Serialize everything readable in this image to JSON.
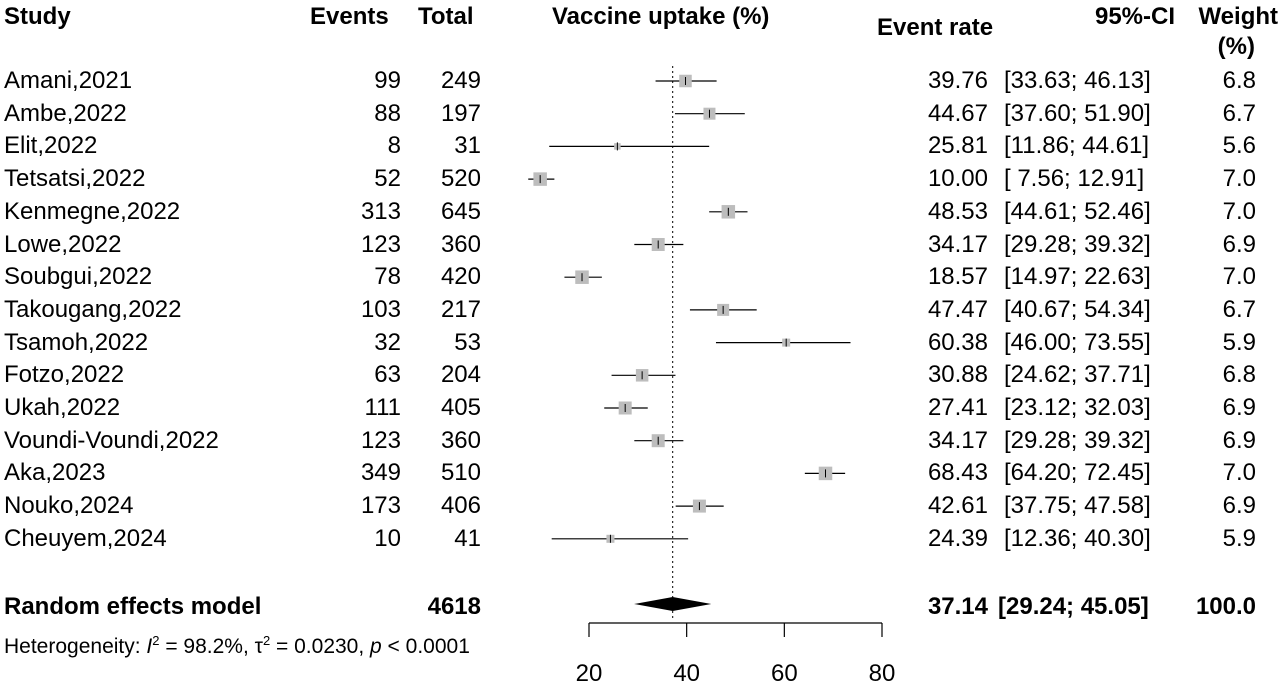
{
  "headers": {
    "study": "Study",
    "events": "Events",
    "total": "Total",
    "plot": "Vaccine uptake (%)",
    "rate": "Event rate",
    "ci": "95%-CI",
    "weight_line1": "Weight",
    "weight_line2": "(%)"
  },
  "summary": {
    "label": "Random effects model",
    "total": "4618",
    "rate": "37.14",
    "ci": "[29.24; 45.05]",
    "weight": "100.0"
  },
  "heterogeneity": {
    "prefix": "Heterogeneity: ",
    "i2_symbol": "I",
    "i2_sup": "2",
    "i2_value": " = 98.2%, ",
    "tau_symbol": "τ",
    "tau_sup": "2",
    "tau_value": " = 0.0230, ",
    "p_symbol": "p",
    "p_value": " < 0.0001"
  },
  "chart_data": {
    "type": "scatter",
    "subtype": "forest",
    "title": "Vaccine uptake (%)",
    "xlim": [
      20,
      80
    ],
    "x_ticks": [
      "20",
      "40",
      "60",
      "80"
    ],
    "reference_line": 37.14,
    "studies": [
      {
        "study": "Amani,2021",
        "events": "99",
        "total": "249",
        "rate": 39.76,
        "lower": 33.63,
        "upper": 46.13,
        "rate_text": "39.76",
        "ci_text": "[33.63; 46.13]",
        "weight": "6.8"
      },
      {
        "study": "Ambe,2022",
        "events": "88",
        "total": "197",
        "rate": 44.67,
        "lower": 37.6,
        "upper": 51.9,
        "rate_text": "44.67",
        "ci_text": "[37.60; 51.90]",
        "weight": "6.7"
      },
      {
        "study": "Elit,2022",
        "events": "8",
        "total": "31",
        "rate": 25.81,
        "lower": 11.86,
        "upper": 44.61,
        "rate_text": "25.81",
        "ci_text": "[11.86; 44.61]",
        "weight": "5.6"
      },
      {
        "study": "Tetsatsi,2022",
        "events": "52",
        "total": "520",
        "rate": 10.0,
        "lower": 7.56,
        "upper": 12.91,
        "rate_text": "10.00",
        "ci_text": "[ 7.56; 12.91]",
        "weight": "7.0"
      },
      {
        "study": "Kenmegne,2022",
        "events": "313",
        "total": "645",
        "rate": 48.53,
        "lower": 44.61,
        "upper": 52.46,
        "rate_text": "48.53",
        "ci_text": "[44.61; 52.46]",
        "weight": "7.0"
      },
      {
        "study": "Lowe,2022",
        "events": "123",
        "total": "360",
        "rate": 34.17,
        "lower": 29.28,
        "upper": 39.32,
        "rate_text": "34.17",
        "ci_text": "[29.28; 39.32]",
        "weight": "6.9"
      },
      {
        "study": "Soubgui,2022",
        "events": "78",
        "total": "420",
        "rate": 18.57,
        "lower": 14.97,
        "upper": 22.63,
        "rate_text": "18.57",
        "ci_text": "[14.97; 22.63]",
        "weight": "7.0"
      },
      {
        "study": "Takougang,2022",
        "events": "103",
        "total": "217",
        "rate": 47.47,
        "lower": 40.67,
        "upper": 54.34,
        "rate_text": "47.47",
        "ci_text": "[40.67; 54.34]",
        "weight": "6.7"
      },
      {
        "study": "Tsamoh,2022",
        "events": "32",
        "total": "53",
        "rate": 60.38,
        "lower": 46.0,
        "upper": 73.55,
        "rate_text": "60.38",
        "ci_text": "[46.00; 73.55]",
        "weight": "5.9"
      },
      {
        "study": "Fotzo,2022",
        "events": "63",
        "total": "204",
        "rate": 30.88,
        "lower": 24.62,
        "upper": 37.71,
        "rate_text": "30.88",
        "ci_text": "[24.62; 37.71]",
        "weight": "6.8"
      },
      {
        "study": "Ukah,2022",
        "events": "111",
        "total": "405",
        "rate": 27.41,
        "lower": 23.12,
        "upper": 32.03,
        "rate_text": "27.41",
        "ci_text": "[23.12; 32.03]",
        "weight": "6.9"
      },
      {
        "study": "Voundi-Voundi,2022",
        "events": "123",
        "total": "360",
        "rate": 34.17,
        "lower": 29.28,
        "upper": 39.32,
        "rate_text": "34.17",
        "ci_text": "[29.28; 39.32]",
        "weight": "6.9"
      },
      {
        "study": "Aka,2023",
        "events": "349",
        "total": "510",
        "rate": 68.43,
        "lower": 64.2,
        "upper": 72.45,
        "rate_text": "68.43",
        "ci_text": "[64.20; 72.45]",
        "weight": "7.0"
      },
      {
        "study": "Nouko,2024",
        "events": "173",
        "total": "406",
        "rate": 42.61,
        "lower": 37.75,
        "upper": 47.58,
        "rate_text": "42.61",
        "ci_text": "[37.75; 47.58]",
        "weight": "6.9"
      },
      {
        "study": "Cheuyem,2024",
        "events": "10",
        "total": "41",
        "rate": 24.39,
        "lower": 12.36,
        "upper": 40.3,
        "rate_text": "24.39",
        "ci_text": "[12.36; 40.30]",
        "weight": "5.9"
      }
    ],
    "pooled": {
      "rate": 37.14,
      "lower": 29.24,
      "upper": 45.05
    }
  },
  "colors": {
    "square": "#bdbdbd",
    "line": "#000000"
  }
}
